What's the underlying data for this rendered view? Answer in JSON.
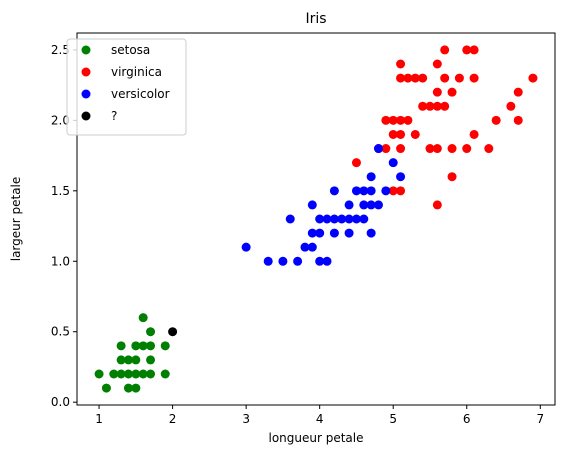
{
  "chart_data": {
    "type": "scatter",
    "title": "Iris",
    "xlabel": "longueur petale",
    "ylabel": "largeur petale",
    "xlim": [
      0.7,
      7.2
    ],
    "ylim": [
      -0.02,
      2.62
    ],
    "xticks": [
      1,
      2,
      3,
      4,
      5,
      6,
      7
    ],
    "xtick_labels": [
      "1",
      "2",
      "3",
      "4",
      "5",
      "6",
      "7"
    ],
    "yticks": [
      0.0,
      0.5,
      1.0,
      1.5,
      2.0,
      2.5
    ],
    "ytick_labels": [
      "0.0",
      "0.5",
      "1.0",
      "1.5",
      "2.0",
      "2.5"
    ],
    "grid": false,
    "legend_position": "upper-left",
    "series": [
      {
        "name": "setosa",
        "color": "#008000",
        "points": [
          [
            1.0,
            0.2
          ],
          [
            1.1,
            0.1
          ],
          [
            1.2,
            0.2
          ],
          [
            1.3,
            0.2
          ],
          [
            1.3,
            0.3
          ],
          [
            1.3,
            0.4
          ],
          [
            1.4,
            0.2
          ],
          [
            1.4,
            0.3
          ],
          [
            1.4,
            0.1
          ],
          [
            1.5,
            0.1
          ],
          [
            1.5,
            0.2
          ],
          [
            1.5,
            0.3
          ],
          [
            1.5,
            0.4
          ],
          [
            1.6,
            0.2
          ],
          [
            1.6,
            0.4
          ],
          [
            1.6,
            0.6
          ],
          [
            1.7,
            0.2
          ],
          [
            1.7,
            0.3
          ],
          [
            1.7,
            0.4
          ],
          [
            1.7,
            0.5
          ],
          [
            1.9,
            0.2
          ],
          [
            1.9,
            0.4
          ]
        ]
      },
      {
        "name": "virginica",
        "color": "#ff0000",
        "points": [
          [
            4.5,
            1.7
          ],
          [
            4.8,
            1.8
          ],
          [
            4.9,
            1.8
          ],
          [
            4.9,
            2.0
          ],
          [
            5.0,
            1.5
          ],
          [
            5.0,
            2.0
          ],
          [
            5.0,
            1.9
          ],
          [
            5.1,
            1.5
          ],
          [
            5.1,
            1.9
          ],
          [
            5.1,
            2.0
          ],
          [
            5.1,
            2.3
          ],
          [
            5.1,
            2.4
          ],
          [
            5.1,
            1.8
          ],
          [
            5.2,
            2.0
          ],
          [
            5.2,
            2.3
          ],
          [
            5.3,
            1.9
          ],
          [
            5.3,
            2.3
          ],
          [
            5.4,
            2.1
          ],
          [
            5.4,
            2.3
          ],
          [
            5.5,
            1.8
          ],
          [
            5.5,
            2.1
          ],
          [
            5.6,
            1.4
          ],
          [
            5.6,
            1.8
          ],
          [
            5.6,
            2.1
          ],
          [
            5.6,
            2.2
          ],
          [
            5.6,
            2.4
          ],
          [
            5.7,
            2.1
          ],
          [
            5.7,
            2.3
          ],
          [
            5.7,
            2.5
          ],
          [
            5.8,
            1.6
          ],
          [
            5.8,
            2.2
          ],
          [
            5.8,
            1.8
          ],
          [
            5.9,
            2.3
          ],
          [
            6.0,
            1.8
          ],
          [
            6.0,
            2.5
          ],
          [
            6.1,
            1.9
          ],
          [
            6.1,
            2.3
          ],
          [
            6.1,
            2.5
          ],
          [
            6.3,
            1.8
          ],
          [
            6.4,
            2.0
          ],
          [
            6.6,
            2.1
          ],
          [
            6.7,
            2.0
          ],
          [
            6.7,
            2.2
          ],
          [
            6.9,
            2.3
          ]
        ]
      },
      {
        "name": "versicolor",
        "color": "#0000ff",
        "points": [
          [
            3.0,
            1.1
          ],
          [
            3.3,
            1.0
          ],
          [
            3.5,
            1.0
          ],
          [
            3.6,
            1.3
          ],
          [
            3.7,
            1.0
          ],
          [
            3.8,
            1.1
          ],
          [
            3.9,
            1.1
          ],
          [
            3.9,
            1.2
          ],
          [
            3.9,
            1.4
          ],
          [
            4.0,
            1.0
          ],
          [
            4.0,
            1.2
          ],
          [
            4.0,
            1.3
          ],
          [
            4.1,
            1.0
          ],
          [
            4.1,
            1.3
          ],
          [
            4.2,
            1.2
          ],
          [
            4.2,
            1.3
          ],
          [
            4.2,
            1.5
          ],
          [
            4.3,
            1.3
          ],
          [
            4.4,
            1.2
          ],
          [
            4.4,
            1.3
          ],
          [
            4.4,
            1.4
          ],
          [
            4.5,
            1.3
          ],
          [
            4.5,
            1.5
          ],
          [
            4.6,
            1.3
          ],
          [
            4.6,
            1.4
          ],
          [
            4.6,
            1.5
          ],
          [
            4.7,
            1.2
          ],
          [
            4.7,
            1.4
          ],
          [
            4.7,
            1.5
          ],
          [
            4.7,
            1.6
          ],
          [
            4.8,
            1.4
          ],
          [
            4.8,
            1.8
          ],
          [
            4.9,
            1.5
          ],
          [
            5.0,
            1.7
          ],
          [
            5.1,
            1.6
          ]
        ]
      },
      {
        "name": "?",
        "color": "#000000",
        "points": [
          [
            2.0,
            0.5
          ]
        ]
      }
    ]
  }
}
